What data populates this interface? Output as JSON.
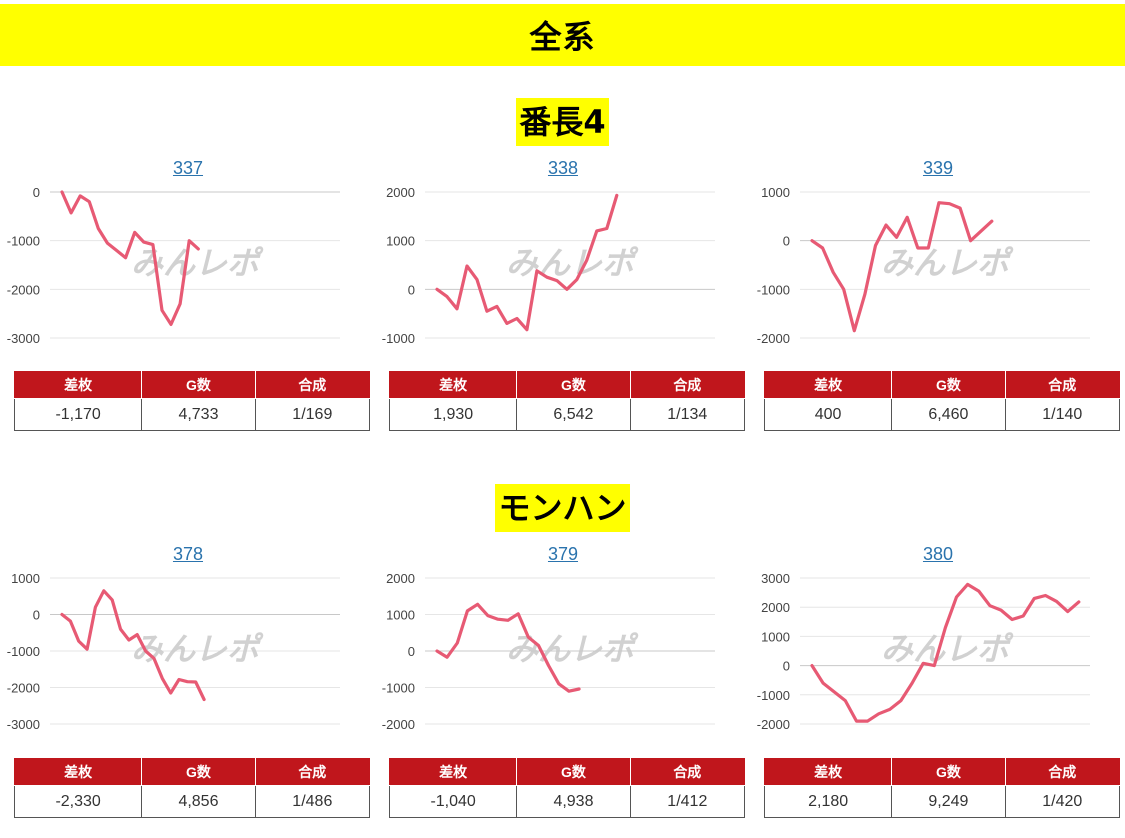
{
  "header": {
    "title": "全系"
  },
  "watermark": "みんレポ",
  "colors": {
    "accent": "#ffff00",
    "line": "#e75a74",
    "table_head": "#c0161c",
    "link": "#2a73ad"
  },
  "table_headers": [
    "差枚",
    "G数",
    "合成"
  ],
  "sections": [
    {
      "title": "番長4",
      "panels": [
        {
          "number": "337",
          "stats": [
            "-1,170",
            "4,733",
            "1/169"
          ]
        },
        {
          "number": "338",
          "stats": [
            "1,930",
            "6,542",
            "1/134"
          ]
        },
        {
          "number": "339",
          "stats": [
            "400",
            "6,460",
            "1/140"
          ]
        }
      ]
    },
    {
      "title": "モンハン",
      "panels": [
        {
          "number": "378",
          "stats": [
            "-2,330",
            "4,856",
            "1/486"
          ]
        },
        {
          "number": "379",
          "stats": [
            "-1,040",
            "4,938",
            "1/412"
          ]
        },
        {
          "number": "380",
          "stats": [
            "2,180",
            "9,249",
            "1/420"
          ]
        }
      ]
    }
  ],
  "chart_data": [
    {
      "type": "line",
      "id": "337",
      "yticks": [
        0,
        -1000,
        -2000,
        -3000
      ],
      "ylim": [
        -3000,
        0
      ],
      "values": [
        0,
        -430,
        -80,
        -200,
        -750,
        -1050,
        -1200,
        -1350,
        -830,
        -1030,
        -1080,
        -2430,
        -2720,
        -2300,
        -1000,
        -1170
      ]
    },
    {
      "type": "line",
      "id": "338",
      "yticks": [
        2000,
        1000,
        0,
        -1000
      ],
      "ylim": [
        -1000,
        2000
      ],
      "values": [
        0,
        -150,
        -400,
        480,
        200,
        -450,
        -350,
        -700,
        -600,
        -830,
        380,
        250,
        180,
        0,
        200,
        600,
        1200,
        1250,
        1930
      ]
    },
    {
      "type": "line",
      "id": "339",
      "yticks": [
        1000,
        0,
        -1000,
        -2000
      ],
      "ylim": [
        -2000,
        1000
      ],
      "values": [
        0,
        -150,
        -650,
        -1000,
        -1850,
        -1100,
        -100,
        320,
        70,
        480,
        -150,
        -150,
        780,
        760,
        670,
        0,
        200,
        400
      ]
    },
    {
      "type": "line",
      "id": "378",
      "yticks": [
        1000,
        0,
        -1000,
        -2000,
        -3000
      ],
      "ylim": [
        -3000,
        1000
      ],
      "values": [
        0,
        -180,
        -730,
        -950,
        200,
        650,
        400,
        -400,
        -700,
        -550,
        -1000,
        -1200,
        -1750,
        -2150,
        -1780,
        -1840,
        -1850,
        -2330
      ]
    },
    {
      "type": "line",
      "id": "379",
      "yticks": [
        2000,
        1000,
        0,
        -1000,
        -2000
      ],
      "ylim": [
        -2000,
        2000
      ],
      "values": [
        0,
        -170,
        220,
        1100,
        1280,
        970,
        870,
        840,
        1020,
        380,
        150,
        -400,
        -900,
        -1100,
        -1040
      ]
    },
    {
      "type": "line",
      "id": "380",
      "yticks": [
        3000,
        2000,
        1000,
        0,
        -1000,
        -2000
      ],
      "ylim": [
        -2000,
        3000
      ],
      "values": [
        0,
        -600,
        -900,
        -1200,
        -1900,
        -1900,
        -1650,
        -1500,
        -1200,
        -600,
        80,
        0,
        1300,
        2350,
        2780,
        2550,
        2050,
        1900,
        1580,
        1700,
        2300,
        2400,
        2200,
        1850,
        2180
      ]
    }
  ]
}
